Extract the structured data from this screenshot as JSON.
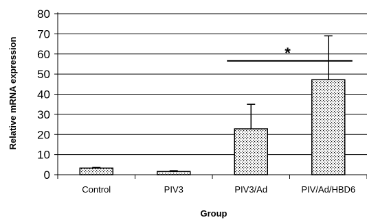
{
  "chart_data": {
    "type": "bar",
    "title": "",
    "xlabel": "Group",
    "ylabel": "Relative mRNA expression",
    "categories": [
      "Control",
      "PIV3",
      "PIV3/Ad",
      "PIV/Ad/HBD6"
    ],
    "values": [
      3.3,
      1.6,
      22.8,
      47.2
    ],
    "errors_upper": [
      3.6,
      2.0,
      35.0,
      69.0
    ],
    "ylim": [
      0,
      80
    ],
    "yticks": [
      "0",
      "10",
      "20",
      "30",
      "40",
      "50",
      "60",
      "70",
      "80"
    ],
    "grid": "horizontal gridlines at each tick",
    "bar_fill": "dotted pattern",
    "annotations": [
      {
        "text": "*",
        "bracket_from": "PIV3/Ad",
        "bracket_to": "PIV/Ad/HBD6",
        "y": 61
      }
    ]
  },
  "colors": {
    "axis": "#000000",
    "grid": "#000000",
    "bar_outline": "#000000",
    "dots": "#000000"
  }
}
